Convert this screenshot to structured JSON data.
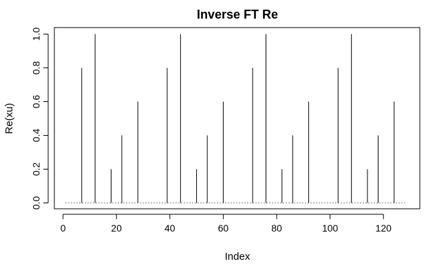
{
  "chart_data": {
    "type": "bar",
    "title": "Inverse FT Re",
    "xlabel": "Index",
    "ylabel": "Re(xu)",
    "xlim": [
      1,
      128
    ],
    "ylim": [
      0,
      1
    ],
    "x_ticks": [
      0,
      20,
      40,
      60,
      80,
      100,
      120
    ],
    "y_ticks": [
      0.0,
      0.2,
      0.4,
      0.6,
      0.8,
      1.0
    ],
    "x_tick_labels": [
      "0",
      "20",
      "40",
      "60",
      "80",
      "100",
      "120"
    ],
    "y_tick_labels": [
      "0.0",
      "0.2",
      "0.4",
      "0.6",
      "0.8",
      "1.0"
    ],
    "grid": false,
    "style": "histogram-spikes",
    "nonzero_points": [
      {
        "x": 7,
        "y": 0.8
      },
      {
        "x": 12,
        "y": 1.0
      },
      {
        "x": 18,
        "y": 0.2
      },
      {
        "x": 22,
        "y": 0.4
      },
      {
        "x": 28,
        "y": 0.6
      },
      {
        "x": 39,
        "y": 0.8
      },
      {
        "x": 44,
        "y": 1.0
      },
      {
        "x": 50,
        "y": 0.2
      },
      {
        "x": 54,
        "y": 0.4
      },
      {
        "x": 60,
        "y": 0.6
      },
      {
        "x": 71,
        "y": 0.8
      },
      {
        "x": 76,
        "y": 1.0
      },
      {
        "x": 82,
        "y": 0.2
      },
      {
        "x": 86,
        "y": 0.4
      },
      {
        "x": 92,
        "y": 0.6
      },
      {
        "x": 103,
        "y": 0.8
      },
      {
        "x": 108,
        "y": 1.0
      },
      {
        "x": 114,
        "y": 0.2
      },
      {
        "x": 118,
        "y": 0.4
      },
      {
        "x": 124,
        "y": 0.6
      }
    ],
    "baseline_value": 0,
    "line_color": "#000000"
  }
}
